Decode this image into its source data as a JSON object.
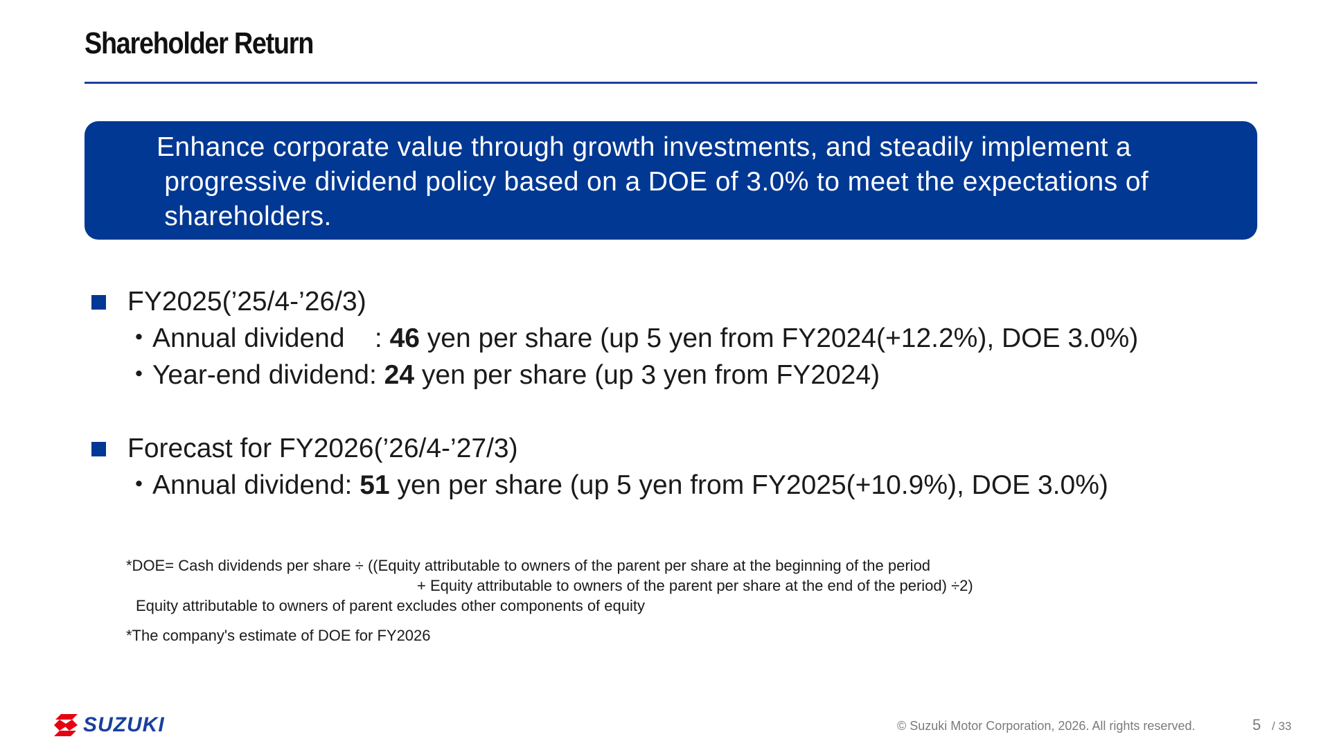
{
  "header": {
    "title": "Shareholder Return"
  },
  "banner": {
    "text": "Enhance corporate value through growth investments, and steadily implement a\n progressive dividend policy based on a DOE of 3.0% to meet the expectations of\n shareholders."
  },
  "sections": [
    {
      "heading": "FY2025(’25/4-’26/3)",
      "lines": [
        {
          "pre": "・Annual dividend    : ",
          "num": "46",
          "post": " yen per share (up 5 yen from FY2024(+12.2%), DOE 3.0%)"
        },
        {
          "pre": "・Year-end dividend: ",
          "num": "24",
          "post": " yen per share (up 3 yen from FY2024)"
        }
      ]
    },
    {
      "heading": "Forecast for FY2026(’26/4-’27/3)",
      "lines": [
        {
          "pre": "・Annual dividend: ",
          "num": "51",
          "post": " yen per share (up 5 yen from FY2025(+10.9%), DOE 3.0%)"
        }
      ]
    }
  ],
  "notes": {
    "doe_line1": "*DOE= Cash dividends per share ÷ ((Equity attributable to owners of the parent per share at the beginning of the period",
    "doe_line2": "+ Equity attributable to owners of the parent per share at the end of the period) ÷2)",
    "doe_line3": "Equity attributable to owners of parent excludes other components of equity",
    "estimate": "*The company's estimate of DOE for FY2026"
  },
  "footer": {
    "logo_text": "SUZUKI",
    "logo_icon": "suzuki-s-emblem",
    "copyright": "© Suzuki Motor Corporation, 2026. All rights reserved.",
    "page": "5",
    "total": "/ 33"
  },
  "colors": {
    "brand_blue": "#003893",
    "logo_red": "#e60012"
  }
}
